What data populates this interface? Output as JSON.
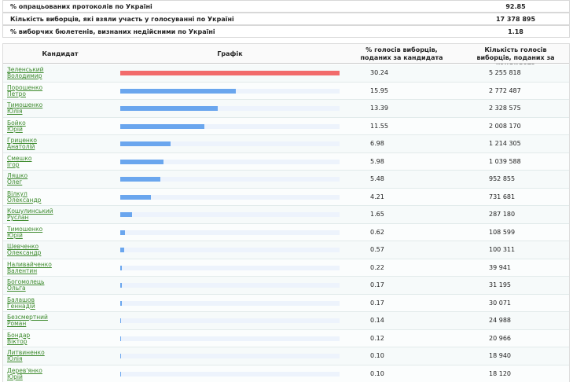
{
  "summary": [
    {
      "label": "% опрацьованих протоколів по Україні",
      "value": 92.85
    },
    {
      "label": "Кількість виборців, які взяли участь у голосуванні по Україні",
      "value": "17 378 895"
    },
    {
      "label": "% виборчих бюлетенів, визнаних недійсними по Україні",
      "value": 1.18
    }
  ],
  "table": {
    "headers": [
      "Кандидат",
      "Графік",
      "% голосів виборців, поданих за кандидата",
      "Кількість голосів виборців, поданих за кандидата"
    ],
    "bar_colors": {
      "leader": "#f26b6b",
      "other": "#6aa6ee",
      "track": "#edf3fc"
    },
    "rows": [
      {
        "name": [
          "Зеленський",
          "Володимир"
        ],
        "percent": 30.24,
        "votes": "5 255 818"
      },
      {
        "name": [
          "Порошенко",
          "Петро"
        ],
        "percent": 15.95,
        "votes": "2 772 487"
      },
      {
        "name": [
          "Тимошенко",
          "Юлія"
        ],
        "percent": 13.39,
        "votes": "2 328 575"
      },
      {
        "name": [
          "Бойко",
          "Юрій"
        ],
        "percent": 11.55,
        "votes": "2 008 170"
      },
      {
        "name": [
          "Гриценко",
          "Анатолій"
        ],
        "percent": 6.98,
        "votes": "1 214 305"
      },
      {
        "name": [
          "Смешко",
          "Ігор"
        ],
        "percent": 5.98,
        "votes": "1 039 588"
      },
      {
        "name": [
          "Ляшко",
          "Олег"
        ],
        "percent": 5.48,
        "votes": "952 855"
      },
      {
        "name": [
          "Вілкул",
          "Олександр"
        ],
        "percent": 4.21,
        "votes": "731 681"
      },
      {
        "name": [
          "Кошулинський",
          "Руслан"
        ],
        "percent": 1.65,
        "votes": "287 180"
      },
      {
        "name": [
          "Тимошенко",
          "Юрій"
        ],
        "percent": 0.62,
        "votes": "108 599"
      },
      {
        "name": [
          "Шевченко",
          "Олександр"
        ],
        "percent": 0.57,
        "votes": "100 311"
      },
      {
        "name": [
          "Наливайченко",
          "Валентин"
        ],
        "percent": 0.22,
        "votes": "39 941"
      },
      {
        "name": [
          "Богомолець",
          "Ольга"
        ],
        "percent": 0.17,
        "votes": "31 195"
      },
      {
        "name": [
          "Балашов",
          "Геннадій"
        ],
        "percent": 0.17,
        "votes": "30 071"
      },
      {
        "name": [
          "Безсмертний",
          "Роман"
        ],
        "percent": 0.14,
        "votes": "24 988"
      },
      {
        "name": [
          "Бондар",
          "Віктор"
        ],
        "percent": 0.12,
        "votes": "20 966"
      },
      {
        "name": [
          "Литвиненко",
          "Юлія"
        ],
        "percent": {
          "value": 0.1,
          "label": "0.10"
        },
        "votes": "18 940"
      },
      {
        "name": [
          "Дерев'янко",
          "Юрій"
        ],
        "percent": {
          "value": 0.1,
          "label": "0.10"
        },
        "votes": "18 120"
      }
    ]
  }
}
